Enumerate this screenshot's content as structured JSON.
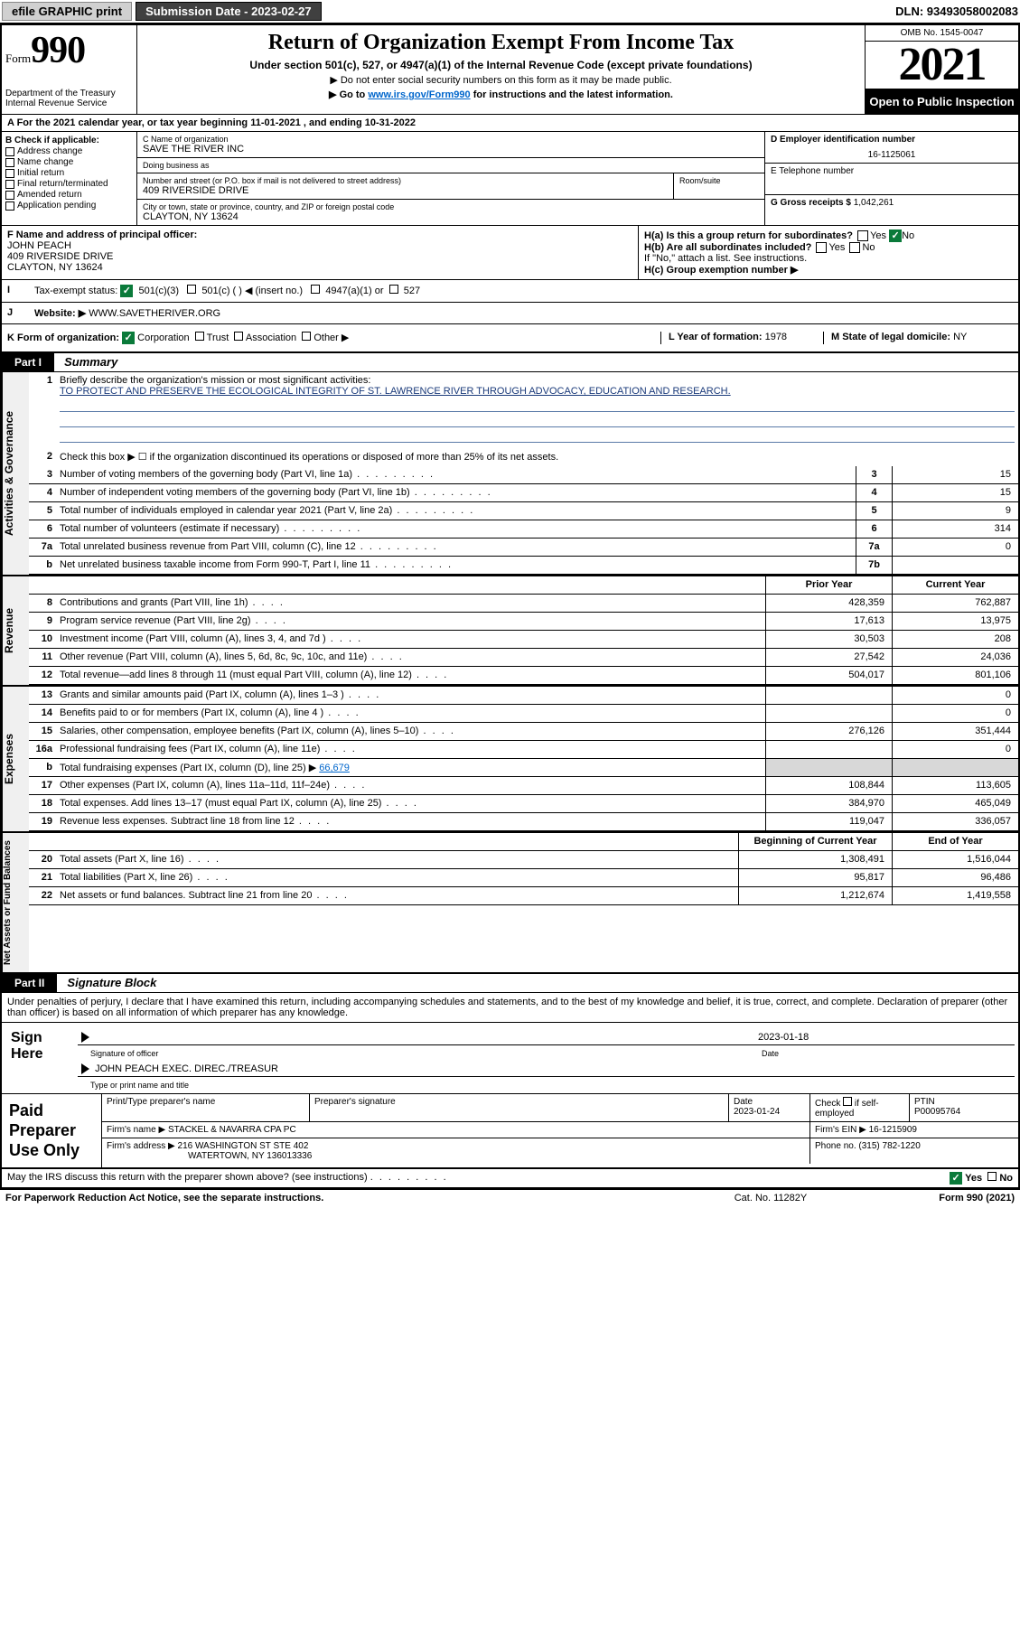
{
  "topbar": {
    "efile": "efile GRAPHIC print",
    "submission_label": "Submission Date - 2023-02-27",
    "dln": "DLN: 93493058002083"
  },
  "header": {
    "form_prefix": "Form",
    "form_no": "990",
    "title": "Return of Organization Exempt From Income Tax",
    "subtitle": "Under section 501(c), 527, or 4947(a)(1) of the Internal Revenue Code (except private foundations)",
    "note1": "▶ Do not enter social security numbers on this form as it may be made public.",
    "note2_pre": "▶ Go to ",
    "note2_link": "www.irs.gov/Form990",
    "note2_post": " for instructions and the latest information.",
    "dept": "Department of the Treasury\nInternal Revenue Service",
    "omb": "OMB No. 1545-0047",
    "year": "2021",
    "open": "Open to Public Inspection"
  },
  "rowA": "A For the 2021 calendar year, or tax year beginning 11-01-2021   , and ending 10-31-2022",
  "colB": {
    "label": "B Check if applicable:",
    "opts": [
      "Address change",
      "Name change",
      "Initial return",
      "Final return/terminated",
      "Amended return",
      "Application pending"
    ]
  },
  "blockC": {
    "c_label": "C Name of organization",
    "org": "SAVE THE RIVER INC",
    "dba_label": "Doing business as",
    "dba": "",
    "addr_label": "Number and street (or P.O. box if mail is not delivered to street address)",
    "room_label": "Room/suite",
    "addr": "409 RIVERSIDE DRIVE",
    "city_label": "City or town, state or province, country, and ZIP or foreign postal code",
    "city": "CLAYTON, NY  13624"
  },
  "blockDE": {
    "d_label": "D Employer identification number",
    "ein": "16-1125061",
    "e_label": "E Telephone number",
    "phone": "",
    "g_label": "G Gross receipts $",
    "gross": "1,042,261"
  },
  "rowF": {
    "f_label": "F Name and address of principal officer:",
    "officer": "JOHN PEACH",
    "addr1": "409 RIVERSIDE DRIVE",
    "addr2": "CLAYTON, NY  13624",
    "ha": "H(a)  Is this a group return for subordinates?",
    "hb": "H(b)  Are all subordinates included?",
    "hb_note": "If \"No,\" attach a list. See instructions.",
    "hc": "H(c)  Group exemption number ▶",
    "yes": "Yes",
    "no": "No"
  },
  "rowI": {
    "label": "Tax-exempt status:",
    "opt1": "501(c)(3)",
    "opt2": "501(c) (   ) ◀ (insert no.)",
    "opt3": "4947(a)(1) or",
    "opt4": "527"
  },
  "rowJ": {
    "label": "Website: ▶",
    "val": "WWW.SAVETHERIVER.ORG"
  },
  "rowK": {
    "label": "K Form of organization:",
    "opts": [
      "Corporation",
      "Trust",
      "Association",
      "Other ▶"
    ],
    "l_label": "L Year of formation:",
    "l_val": "1978",
    "m_label": "M State of legal domicile:",
    "m_val": "NY"
  },
  "partI": {
    "tag": "Part I",
    "title": "Summary"
  },
  "summary": {
    "q1": "Briefly describe the organization's mission or most significant activities:",
    "mission": "TO PROTECT AND PRESERVE THE ECOLOGICAL INTEGRITY OF ST. LAWRENCE RIVER THROUGH ADVOCACY, EDUCATION AND RESEARCH.",
    "q2": "Check this box ▶ ☐  if the organization discontinued its operations or disposed of more than 25% of its net assets.",
    "rows_single": [
      {
        "n": "3",
        "d": "Number of voting members of the governing body (Part VI, line 1a)",
        "box": "3",
        "v": "15"
      },
      {
        "n": "4",
        "d": "Number of independent voting members of the governing body (Part VI, line 1b)",
        "box": "4",
        "v": "15"
      },
      {
        "n": "5",
        "d": "Total number of individuals employed in calendar year 2021 (Part V, line 2a)",
        "box": "5",
        "v": "9"
      },
      {
        "n": "6",
        "d": "Total number of volunteers (estimate if necessary)",
        "box": "6",
        "v": "314"
      },
      {
        "n": "7a",
        "d": "Total unrelated business revenue from Part VIII, column (C), line 12",
        "box": "7a",
        "v": "0"
      },
      {
        "n": "b",
        "d": "Net unrelated business taxable income from Form 990-T, Part I, line 11",
        "box": "7b",
        "v": ""
      }
    ],
    "col_hdr_prior": "Prior Year",
    "col_hdr_curr": "Current Year",
    "revenue": [
      {
        "n": "8",
        "d": "Contributions and grants (Part VIII, line 1h)",
        "p": "428,359",
        "c": "762,887"
      },
      {
        "n": "9",
        "d": "Program service revenue (Part VIII, line 2g)",
        "p": "17,613",
        "c": "13,975"
      },
      {
        "n": "10",
        "d": "Investment income (Part VIII, column (A), lines 3, 4, and 7d )",
        "p": "30,503",
        "c": "208"
      },
      {
        "n": "11",
        "d": "Other revenue (Part VIII, column (A), lines 5, 6d, 8c, 9c, 10c, and 11e)",
        "p": "27,542",
        "c": "24,036"
      },
      {
        "n": "12",
        "d": "Total revenue—add lines 8 through 11 (must equal Part VIII, column (A), line 12)",
        "p": "504,017",
        "c": "801,106"
      }
    ],
    "expenses": [
      {
        "n": "13",
        "d": "Grants and similar amounts paid (Part IX, column (A), lines 1–3 )",
        "p": "",
        "c": "0"
      },
      {
        "n": "14",
        "d": "Benefits paid to or for members (Part IX, column (A), line 4 )",
        "p": "",
        "c": "0"
      },
      {
        "n": "15",
        "d": "Salaries, other compensation, employee benefits (Part IX, column (A), lines 5–10)",
        "p": "276,126",
        "c": "351,444"
      },
      {
        "n": "16a",
        "d": "Professional fundraising fees (Part IX, column (A), line 11e)",
        "p": "",
        "c": "0"
      }
    ],
    "line16b_pre": "Total fundraising expenses (Part IX, column (D), line 25) ▶",
    "line16b_val": "66,679",
    "expenses2": [
      {
        "n": "17",
        "d": "Other expenses (Part IX, column (A), lines 11a–11d, 11f–24e)",
        "p": "108,844",
        "c": "113,605"
      },
      {
        "n": "18",
        "d": "Total expenses. Add lines 13–17 (must equal Part IX, column (A), line 25)",
        "p": "384,970",
        "c": "465,049"
      },
      {
        "n": "19",
        "d": "Revenue less expenses. Subtract line 18 from line 12",
        "p": "119,047",
        "c": "336,057"
      }
    ],
    "col_hdr_beg": "Beginning of Current Year",
    "col_hdr_end": "End of Year",
    "netassets": [
      {
        "n": "20",
        "d": "Total assets (Part X, line 16)",
        "p": "1,308,491",
        "c": "1,516,044"
      },
      {
        "n": "21",
        "d": "Total liabilities (Part X, line 26)",
        "p": "95,817",
        "c": "96,486"
      },
      {
        "n": "22",
        "d": "Net assets or fund balances. Subtract line 21 from line 20",
        "p": "1,212,674",
        "c": "1,419,558"
      }
    ]
  },
  "vtabs": {
    "gov": "Activities & Governance",
    "rev": "Revenue",
    "exp": "Expenses",
    "net": "Net Assets or Fund Balances"
  },
  "partII": {
    "tag": "Part II",
    "title": "Signature Block"
  },
  "sig": {
    "intro": "Under penalties of perjury, I declare that I have examined this return, including accompanying schedules and statements, and to the best of my knowledge and belief, it is true, correct, and complete. Declaration of preparer (other than officer) is based on all information of which preparer has any knowledge.",
    "sign_here": "Sign Here",
    "sig_officer": "Signature of officer",
    "sig_date": "2023-01-18",
    "date_lbl": "Date",
    "name_title": "JOHN PEACH  EXEC. DIREC./TREASUR",
    "name_lbl": "Type or print name and title"
  },
  "prep": {
    "label": "Paid Preparer Use Only",
    "h1": "Print/Type preparer's name",
    "h2": "Preparer's signature",
    "h3": "Date",
    "date": "2023-01-24",
    "h4_pre": "Check",
    "h4_post": "if self-employed",
    "h5": "PTIN",
    "ptin": "P00095764",
    "firm_name_lbl": "Firm's name   ▶",
    "firm_name": "STACKEL & NAVARRA CPA PC",
    "firm_ein_lbl": "Firm's EIN ▶",
    "firm_ein": "16-1215909",
    "firm_addr_lbl": "Firm's address ▶",
    "firm_addr1": "216 WASHINGTON ST STE 402",
    "firm_addr2": "WATERTOWN, NY  136013336",
    "phone_lbl": "Phone no.",
    "phone": "(315) 782-1220"
  },
  "footer": {
    "q": "May the IRS discuss this return with the preparer shown above? (see instructions)",
    "yes": "Yes",
    "no": "No",
    "notice": "For Paperwork Reduction Act Notice, see the separate instructions.",
    "cat": "Cat. No. 11282Y",
    "form": "Form 990 (2021)"
  }
}
